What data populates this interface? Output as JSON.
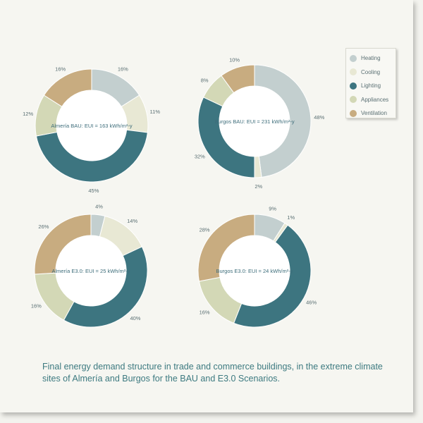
{
  "legend": [
    {
      "label": "Heating",
      "color": "#c3cfcf"
    },
    {
      "label": "Cooling",
      "color": "#e8e8d4"
    },
    {
      "label": "Lighting",
      "color": "#3d7580"
    },
    {
      "label": "Appliances",
      "color": "#d3d8b6"
    },
    {
      "label": "Ventilation",
      "color": "#c8ac80"
    }
  ],
  "caption": "Final energy demand structure in trade and commerce buildings, in the extreme climate sites of Almería and Burgos for the BAU and E3.0 Scenarios.",
  "chart_data": [
    {
      "type": "pie",
      "title": "Almería BAU: EUI = 163 kWh/m²-y",
      "categories": [
        "Heating",
        "Cooling",
        "Lighting",
        "Appliances",
        "Ventilation"
      ],
      "values": [
        16,
        11,
        45,
        12,
        16
      ],
      "value_labels": [
        "16%",
        "11%",
        "45%",
        "12%",
        "16%"
      ]
    },
    {
      "type": "pie",
      "title": "Burgos BAU: EUI = 231 kWh/m²-y",
      "categories": [
        "Heating",
        "Cooling",
        "Lighting",
        "Appliances",
        "Ventilation"
      ],
      "values": [
        48,
        2,
        32,
        8,
        10
      ],
      "value_labels": [
        "48%",
        "2%",
        "32%",
        "8%",
        "10%"
      ]
    },
    {
      "type": "pie",
      "title": "Almería E3.0: EUI = 25 kWh/m²-y",
      "categories": [
        "Heating",
        "Cooling",
        "Lighting",
        "Appliances",
        "Ventilation"
      ],
      "values": [
        4,
        14,
        40,
        16,
        26
      ],
      "value_labels": [
        "4%",
        "14%",
        "40%",
        "16%",
        "26%"
      ]
    },
    {
      "type": "pie",
      "title": "Burgos E3.0: EUI = 24 kWh/m²-y",
      "categories": [
        "Heating",
        "Cooling",
        "Lighting",
        "Appliances",
        "Ventilation"
      ],
      "values": [
        9,
        1,
        46,
        16,
        28
      ],
      "value_labels": [
        "9%",
        "1%",
        "46%",
        "16%",
        "28%"
      ]
    }
  ]
}
